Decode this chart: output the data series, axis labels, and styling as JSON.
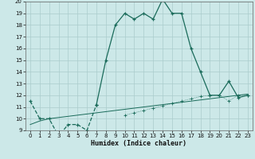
{
  "x": [
    0,
    1,
    2,
    3,
    4,
    5,
    6,
    7,
    8,
    9,
    10,
    11,
    12,
    13,
    14,
    15,
    16,
    17,
    18,
    19,
    20,
    21,
    22,
    23
  ],
  "line1_y": [
    11.5,
    10.0,
    10.0,
    8.5,
    9.5,
    9.5,
    9.0,
    11.2,
    null,
    null,
    null,
    null,
    null,
    null,
    null,
    null,
    null,
    null,
    null,
    null,
    null,
    null,
    null,
    null
  ],
  "main_curve_y": [
    null,
    null,
    null,
    null,
    null,
    null,
    null,
    11.2,
    15.0,
    18.0,
    19.0,
    18.5,
    19.0,
    18.5,
    20.2,
    19.0,
    19.0,
    16.0,
    14.0,
    12.0,
    12.0,
    13.2,
    11.8,
    12.0
  ],
  "ref_line_y": [
    9.5,
    9.8,
    10.0,
    10.1,
    10.2,
    10.3,
    10.4,
    10.5,
    10.6,
    10.7,
    10.8,
    10.9,
    11.0,
    11.1,
    11.2,
    11.3,
    11.4,
    11.5,
    11.6,
    11.7,
    11.8,
    11.9,
    12.0,
    12.1
  ],
  "ref2_y": [
    null,
    null,
    null,
    null,
    null,
    null,
    null,
    null,
    null,
    null,
    10.3,
    10.5,
    10.7,
    10.9,
    11.1,
    11.3,
    11.5,
    11.7,
    11.9,
    12.0,
    12.0,
    11.5,
    12.0,
    12.0
  ],
  "xlabel": "Humidex (Indice chaleur)",
  "ylim": [
    9,
    20
  ],
  "xlim": [
    -0.5,
    23.5
  ],
  "yticks": [
    9,
    10,
    11,
    12,
    13,
    14,
    15,
    16,
    17,
    18,
    19,
    20
  ],
  "xticks": [
    0,
    1,
    2,
    3,
    4,
    5,
    6,
    7,
    8,
    9,
    10,
    11,
    12,
    13,
    14,
    15,
    16,
    17,
    18,
    19,
    20,
    21,
    22,
    23
  ],
  "bg_color": "#cce8e8",
  "line_color": "#1a6b5a",
  "grid_color": "#aacccc",
  "tick_fontsize": 5,
  "xlabel_fontsize": 6,
  "linewidth": 0.9,
  "markersize": 3.5,
  "markeredgewidth": 0.9
}
